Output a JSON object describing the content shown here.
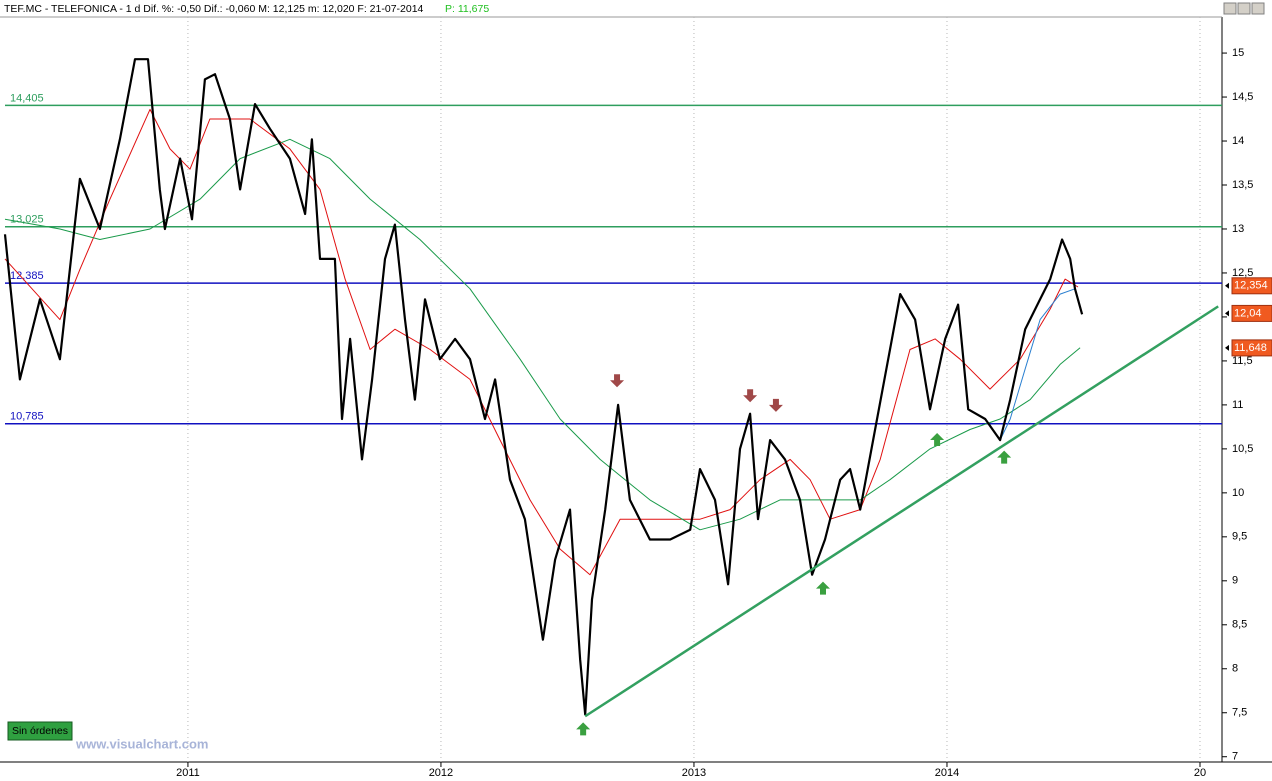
{
  "chart_data": {
    "type": "line",
    "title": "TEF.MC - TELEFONICA - 1 d  Dif. %: -0,50  Dif.: -0,060  M: 12,125  m: 12,020  F: 21-07-2014",
    "subtitle": "P: 11,675",
    "xlim": [
      2010.277,
      2015.087
    ],
    "xticks": [
      2011,
      2012,
      2013,
      2014,
      {
        "value": 2015,
        "label": "20"
      }
    ],
    "ylim": [
      6.94,
      15.41
    ],
    "yticks": [
      7,
      {
        "value": 7.5,
        "label": "7,5"
      },
      8,
      {
        "value": 8.5,
        "label": "8,5"
      },
      9,
      {
        "value": 9.5,
        "label": "9,5"
      },
      10,
      {
        "value": 10.5,
        "label": "10,5"
      },
      11,
      {
        "value": 11.5,
        "label": "11,5"
      },
      12,
      {
        "value": 12.5,
        "label": "12,5"
      },
      13,
      {
        "value": 13.5,
        "label": "13,5"
      },
      14,
      {
        "value": 14.5,
        "label": "14,5"
      },
      15
    ],
    "grid": "x",
    "series": [
      {
        "name": "TEF.MC",
        "color": "#000000",
        "x": [
          2010.277,
          2010.336,
          2010.415,
          2010.494,
          2010.573,
          2010.652,
          2010.731,
          2010.791,
          2010.842,
          2010.889,
          2010.909,
          2010.969,
          2011.016,
          2011.067,
          2011.107,
          2011.166,
          2011.206,
          2011.265,
          2011.324,
          2011.403,
          2011.463,
          2011.49,
          2011.522,
          2011.581,
          2011.609,
          2011.641,
          2011.688,
          2011.728,
          2011.779,
          2011.818,
          2011.858,
          2011.897,
          2011.937,
          2011.996,
          2012.056,
          2012.115,
          2012.174,
          2012.214,
          2012.273,
          2012.332,
          2012.403,
          2012.451,
          2012.51,
          2012.55,
          2012.57,
          2012.597,
          2012.649,
          2012.7,
          2012.747,
          2012.826,
          2012.906,
          2012.985,
          2013.024,
          2013.083,
          2013.135,
          2013.182,
          2013.222,
          2013.253,
          2013.301,
          2013.36,
          2013.419,
          2013.467,
          2013.518,
          2013.578,
          2013.617,
          2013.657,
          2013.716,
          2013.775,
          2013.815,
          2013.874,
          2013.933,
          2013.993,
          2014.044,
          2014.084,
          2014.151,
          2014.21,
          2014.25,
          2014.309,
          2014.368,
          2014.408,
          2014.455,
          2014.487,
          2014.506,
          2014.534
        ],
        "values": [
          12.94,
          11.29,
          12.2,
          11.52,
          13.57,
          13.0,
          14.02,
          14.93,
          14.93,
          13.45,
          13.0,
          13.8,
          13.11,
          14.7,
          14.76,
          14.25,
          13.45,
          14.42,
          14.14,
          13.8,
          13.17,
          14.02,
          12.66,
          12.66,
          10.84,
          11.75,
          10.38,
          11.29,
          12.66,
          13.05,
          11.97,
          11.06,
          12.2,
          11.52,
          11.75,
          11.52,
          10.84,
          11.29,
          10.15,
          9.7,
          8.33,
          9.24,
          9.81,
          8.11,
          7.48,
          8.79,
          9.81,
          11.0,
          9.92,
          9.47,
          9.47,
          9.58,
          10.27,
          9.92,
          8.96,
          10.5,
          10.9,
          9.7,
          10.6,
          10.38,
          9.92,
          9.07,
          9.47,
          10.15,
          10.27,
          9.81,
          10.72,
          11.63,
          12.26,
          11.97,
          10.95,
          11.75,
          12.14,
          10.95,
          10.84,
          10.6,
          11.06,
          11.86,
          12.2,
          12.43,
          12.88,
          12.66,
          12.32,
          12.03
        ]
      },
      {
        "name": "MA red",
        "color": "#e01010",
        "x": [
          2010.277,
          2010.494,
          2010.573,
          2010.692,
          2010.85,
          2010.929,
          2011.008,
          2011.087,
          2011.245,
          2011.403,
          2011.522,
          2011.621,
          2011.72,
          2011.818,
          2011.957,
          2012.115,
          2012.234,
          2012.352,
          2012.471,
          2012.589,
          2012.708,
          2012.866,
          2013.024,
          2013.143,
          2013.261,
          2013.38,
          2013.459,
          2013.538,
          2013.657,
          2013.736,
          2013.854,
          2013.953,
          2014.052,
          2014.17,
          2014.289,
          2014.408,
          2014.467,
          2014.518
        ],
        "values": [
          12.66,
          11.97,
          12.54,
          13.34,
          14.36,
          13.91,
          13.68,
          14.25,
          14.25,
          13.91,
          13.45,
          12.43,
          11.63,
          11.86,
          11.63,
          11.29,
          10.6,
          9.92,
          9.36,
          9.07,
          9.7,
          9.7,
          9.7,
          9.81,
          10.15,
          10.38,
          10.15,
          9.7,
          9.81,
          10.38,
          11.63,
          11.75,
          11.52,
          11.18,
          11.52,
          12.09,
          12.43,
          12.34
        ]
      },
      {
        "name": "MA green",
        "color": "#1a9a4a",
        "x": [
          2010.277,
          2010.494,
          2010.652,
          2010.85,
          2011.048,
          2011.206,
          2011.403,
          2011.561,
          2011.72,
          2011.917,
          2012.115,
          2012.313,
          2012.471,
          2012.629,
          2012.826,
          2013.024,
          2013.182,
          2013.34,
          2013.498,
          2013.657,
          2013.775,
          2013.933,
          2014.091,
          2014.21,
          2014.329,
          2014.447,
          2014.526
        ],
        "values": [
          13.11,
          13.0,
          12.88,
          13.0,
          13.34,
          13.8,
          14.02,
          13.8,
          13.34,
          12.88,
          12.32,
          11.52,
          10.84,
          10.38,
          9.92,
          9.58,
          9.7,
          9.92,
          9.92,
          9.92,
          10.15,
          10.5,
          10.72,
          10.84,
          11.06,
          11.46,
          11.65
        ]
      },
      {
        "name": "MA blue",
        "color": "#2a7fd0",
        "x": [
          2014.21,
          2014.25,
          2014.309,
          2014.368,
          2014.447,
          2014.506
        ],
        "values": [
          10.6,
          10.84,
          11.41,
          11.97,
          12.26,
          12.32
        ]
      }
    ],
    "levels": [
      {
        "value": 14.405,
        "label": "14,405",
        "color": "#2e9e5e"
      },
      {
        "value": 13.025,
        "label": "13,025",
        "color": "#2e9e5e"
      },
      {
        "value": 12.385,
        "label": "12,385",
        "color": "#1010c0"
      },
      {
        "value": 10.785,
        "label": "10,785",
        "color": "#1010c0"
      }
    ],
    "trendlines": [
      {
        "x": [
          2012.57,
          2015.072
        ],
        "values": [
          7.46,
          12.12
        ],
        "color": "#33a060"
      }
    ],
    "signals": [
      {
        "direction": "down",
        "x": 2012.696,
        "value": 11.2,
        "color": "#a04848"
      },
      {
        "direction": "down",
        "x": 2013.222,
        "value": 11.03,
        "color": "#a04848"
      },
      {
        "direction": "down",
        "x": 2013.324,
        "value": 10.92,
        "color": "#a04848"
      },
      {
        "direction": "up",
        "x": 2012.562,
        "value": 7.39,
        "color": "#3aa040"
      },
      {
        "direction": "up",
        "x": 2013.51,
        "value": 8.99,
        "color": "#3aa040"
      },
      {
        "direction": "up",
        "x": 2013.961,
        "value": 10.68,
        "color": "#3aa040"
      },
      {
        "direction": "up",
        "x": 2014.226,
        "value": 10.48,
        "color": "#3aa040"
      }
    ],
    "price_tags": [
      {
        "value": 12.354,
        "label": "12,354"
      },
      {
        "value": 12.04,
        "label": "12,04"
      },
      {
        "value": 11.648,
        "label": "11,648"
      }
    ],
    "status": "Sin órdenes",
    "watermark": "www.visualchart.com"
  }
}
